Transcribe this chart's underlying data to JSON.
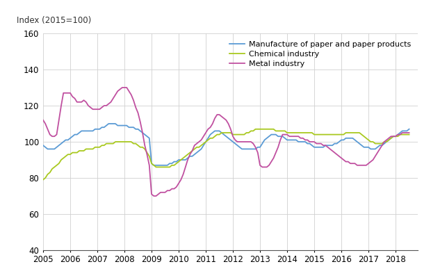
{
  "ylabel": "Index (2015=100)",
  "ylim": [
    40,
    160
  ],
  "yticks": [
    40,
    60,
    80,
    100,
    120,
    140,
    160
  ],
  "xlim_start": 2005.0,
  "xlim_end": 2018.83,
  "legend_labels": [
    "Manufacture of paper and paper products",
    "Chemical industry",
    "Metal industry"
  ],
  "line_colors": [
    "#5b9bd5",
    "#a9c920",
    "#c050a0"
  ],
  "line_width": 1.3,
  "background_color": "#ffffff",
  "grid_color": "#d0d0d0",
  "paper_x": [
    2005.0,
    2005.083,
    2005.167,
    2005.25,
    2005.333,
    2005.417,
    2005.5,
    2005.583,
    2005.667,
    2005.75,
    2005.833,
    2005.917,
    2006.0,
    2006.083,
    2006.167,
    2006.25,
    2006.333,
    2006.417,
    2006.5,
    2006.583,
    2006.667,
    2006.75,
    2006.833,
    2006.917,
    2007.0,
    2007.083,
    2007.167,
    2007.25,
    2007.333,
    2007.417,
    2007.5,
    2007.583,
    2007.667,
    2007.75,
    2007.833,
    2007.917,
    2008.0,
    2008.083,
    2008.167,
    2008.25,
    2008.333,
    2008.417,
    2008.5,
    2008.583,
    2008.667,
    2008.75,
    2008.833,
    2008.917,
    2009.0,
    2009.083,
    2009.167,
    2009.25,
    2009.333,
    2009.417,
    2009.5,
    2009.583,
    2009.667,
    2009.75,
    2009.833,
    2009.917,
    2010.0,
    2010.083,
    2010.167,
    2010.25,
    2010.333,
    2010.417,
    2010.5,
    2010.583,
    2010.667,
    2010.75,
    2010.833,
    2010.917,
    2011.0,
    2011.083,
    2011.167,
    2011.25,
    2011.333,
    2011.417,
    2011.5,
    2011.583,
    2011.667,
    2011.75,
    2011.833,
    2011.917,
    2012.0,
    2012.083,
    2012.167,
    2012.25,
    2012.333,
    2012.417,
    2012.5,
    2012.583,
    2012.667,
    2012.75,
    2012.833,
    2012.917,
    2013.0,
    2013.083,
    2013.167,
    2013.25,
    2013.333,
    2013.417,
    2013.5,
    2013.583,
    2013.667,
    2013.75,
    2013.833,
    2013.917,
    2014.0,
    2014.083,
    2014.167,
    2014.25,
    2014.333,
    2014.417,
    2014.5,
    2014.583,
    2014.667,
    2014.75,
    2014.833,
    2014.917,
    2015.0,
    2015.083,
    2015.167,
    2015.25,
    2015.333,
    2015.417,
    2015.5,
    2015.583,
    2015.667,
    2015.75,
    2015.833,
    2015.917,
    2016.0,
    2016.083,
    2016.167,
    2016.25,
    2016.333,
    2016.417,
    2016.5,
    2016.583,
    2016.667,
    2016.75,
    2016.833,
    2016.917,
    2017.0,
    2017.083,
    2017.167,
    2017.25,
    2017.333,
    2017.417,
    2017.5,
    2017.583,
    2017.667,
    2017.75,
    2017.833,
    2017.917,
    2018.0,
    2018.083,
    2018.167,
    2018.25,
    2018.333,
    2018.417,
    2018.5
  ],
  "paper_y": [
    98,
    97,
    96,
    96,
    96,
    96,
    97,
    98,
    99,
    100,
    101,
    101,
    102,
    103,
    104,
    104,
    105,
    106,
    106,
    106,
    106,
    106,
    106,
    107,
    107,
    107,
    108,
    108,
    109,
    110,
    110,
    110,
    110,
    109,
    109,
    109,
    109,
    109,
    108,
    108,
    108,
    107,
    107,
    106,
    105,
    104,
    103,
    102,
    88,
    87,
    87,
    87,
    87,
    87,
    87,
    87,
    88,
    88,
    89,
    89,
    90,
    90,
    90,
    90,
    91,
    92,
    92,
    93,
    94,
    95,
    96,
    98,
    100,
    102,
    104,
    105,
    106,
    106,
    106,
    105,
    104,
    103,
    102,
    101,
    100,
    99,
    98,
    97,
    96,
    96,
    96,
    96,
    96,
    96,
    96,
    97,
    97,
    99,
    101,
    102,
    103,
    104,
    104,
    104,
    103,
    103,
    103,
    102,
    101,
    101,
    101,
    101,
    101,
    100,
    100,
    100,
    100,
    99,
    99,
    98,
    97,
    97,
    97,
    97,
    97,
    98,
    98,
    98,
    98,
    99,
    99,
    100,
    101,
    101,
    102,
    102,
    102,
    102,
    101,
    100,
    99,
    98,
    97,
    97,
    97,
    96,
    96,
    96,
    97,
    98,
    98,
    99,
    100,
    101,
    102,
    103,
    103,
    104,
    105,
    106,
    106,
    106,
    107
  ],
  "chemical_x": [
    2005.0,
    2005.083,
    2005.167,
    2005.25,
    2005.333,
    2005.417,
    2005.5,
    2005.583,
    2005.667,
    2005.75,
    2005.833,
    2005.917,
    2006.0,
    2006.083,
    2006.167,
    2006.25,
    2006.333,
    2006.417,
    2006.5,
    2006.583,
    2006.667,
    2006.75,
    2006.833,
    2006.917,
    2007.0,
    2007.083,
    2007.167,
    2007.25,
    2007.333,
    2007.417,
    2007.5,
    2007.583,
    2007.667,
    2007.75,
    2007.833,
    2007.917,
    2008.0,
    2008.083,
    2008.167,
    2008.25,
    2008.333,
    2008.417,
    2008.5,
    2008.583,
    2008.667,
    2008.75,
    2008.833,
    2008.917,
    2009.0,
    2009.083,
    2009.167,
    2009.25,
    2009.333,
    2009.417,
    2009.5,
    2009.583,
    2009.667,
    2009.75,
    2009.833,
    2009.917,
    2010.0,
    2010.083,
    2010.167,
    2010.25,
    2010.333,
    2010.417,
    2010.5,
    2010.583,
    2010.667,
    2010.75,
    2010.833,
    2010.917,
    2011.0,
    2011.083,
    2011.167,
    2011.25,
    2011.333,
    2011.417,
    2011.5,
    2011.583,
    2011.667,
    2011.75,
    2011.833,
    2011.917,
    2012.0,
    2012.083,
    2012.167,
    2012.25,
    2012.333,
    2012.417,
    2012.5,
    2012.583,
    2012.667,
    2012.75,
    2012.833,
    2012.917,
    2013.0,
    2013.083,
    2013.167,
    2013.25,
    2013.333,
    2013.417,
    2013.5,
    2013.583,
    2013.667,
    2013.75,
    2013.833,
    2013.917,
    2014.0,
    2014.083,
    2014.167,
    2014.25,
    2014.333,
    2014.417,
    2014.5,
    2014.583,
    2014.667,
    2014.75,
    2014.833,
    2014.917,
    2015.0,
    2015.083,
    2015.167,
    2015.25,
    2015.333,
    2015.417,
    2015.5,
    2015.583,
    2015.667,
    2015.75,
    2015.833,
    2015.917,
    2016.0,
    2016.083,
    2016.167,
    2016.25,
    2016.333,
    2016.417,
    2016.5,
    2016.583,
    2016.667,
    2016.75,
    2016.833,
    2016.917,
    2017.0,
    2017.083,
    2017.167,
    2017.25,
    2017.333,
    2017.417,
    2017.5,
    2017.583,
    2017.667,
    2017.75,
    2017.833,
    2017.917,
    2018.0,
    2018.083,
    2018.167,
    2018.25,
    2018.333,
    2018.417,
    2018.5
  ],
  "chemical_y": [
    79,
    80,
    82,
    83,
    85,
    86,
    87,
    88,
    90,
    91,
    92,
    93,
    93,
    94,
    94,
    94,
    95,
    95,
    95,
    96,
    96,
    96,
    96,
    97,
    97,
    97,
    98,
    98,
    99,
    99,
    99,
    99,
    100,
    100,
    100,
    100,
    100,
    100,
    100,
    100,
    99,
    99,
    98,
    97,
    97,
    96,
    94,
    92,
    88,
    87,
    86,
    86,
    86,
    86,
    86,
    86,
    86,
    87,
    87,
    88,
    89,
    90,
    91,
    92,
    93,
    94,
    95,
    96,
    97,
    97,
    98,
    99,
    100,
    101,
    102,
    102,
    103,
    104,
    104,
    105,
    105,
    105,
    105,
    105,
    104,
    104,
    104,
    104,
    104,
    104,
    105,
    105,
    106,
    106,
    107,
    107,
    107,
    107,
    107,
    107,
    107,
    107,
    107,
    106,
    106,
    106,
    106,
    106,
    105,
    105,
    105,
    105,
    105,
    105,
    105,
    105,
    105,
    105,
    105,
    105,
    104,
    104,
    104,
    104,
    104,
    104,
    104,
    104,
    104,
    104,
    104,
    104,
    104,
    104,
    105,
    105,
    105,
    105,
    105,
    105,
    105,
    104,
    103,
    102,
    101,
    100,
    100,
    99,
    99,
    99,
    99,
    100,
    100,
    101,
    102,
    103,
    103,
    103,
    104,
    104,
    104,
    104,
    104
  ],
  "metal_x": [
    2005.0,
    2005.083,
    2005.167,
    2005.25,
    2005.333,
    2005.417,
    2005.5,
    2005.583,
    2005.667,
    2005.75,
    2005.833,
    2005.917,
    2006.0,
    2006.083,
    2006.167,
    2006.25,
    2006.333,
    2006.417,
    2006.5,
    2006.583,
    2006.667,
    2006.75,
    2006.833,
    2006.917,
    2007.0,
    2007.083,
    2007.167,
    2007.25,
    2007.333,
    2007.417,
    2007.5,
    2007.583,
    2007.667,
    2007.75,
    2007.833,
    2007.917,
    2008.0,
    2008.083,
    2008.167,
    2008.25,
    2008.333,
    2008.417,
    2008.5,
    2008.583,
    2008.667,
    2008.75,
    2008.833,
    2008.917,
    2009.0,
    2009.083,
    2009.167,
    2009.25,
    2009.333,
    2009.417,
    2009.5,
    2009.583,
    2009.667,
    2009.75,
    2009.833,
    2009.917,
    2010.0,
    2010.083,
    2010.167,
    2010.25,
    2010.333,
    2010.417,
    2010.5,
    2010.583,
    2010.667,
    2010.75,
    2010.833,
    2010.917,
    2011.0,
    2011.083,
    2011.167,
    2011.25,
    2011.333,
    2011.417,
    2011.5,
    2011.583,
    2011.667,
    2011.75,
    2011.833,
    2011.917,
    2012.0,
    2012.083,
    2012.167,
    2012.25,
    2012.333,
    2012.417,
    2012.5,
    2012.583,
    2012.667,
    2012.75,
    2012.833,
    2012.917,
    2013.0,
    2013.083,
    2013.167,
    2013.25,
    2013.333,
    2013.417,
    2013.5,
    2013.583,
    2013.667,
    2013.75,
    2013.833,
    2013.917,
    2014.0,
    2014.083,
    2014.167,
    2014.25,
    2014.333,
    2014.417,
    2014.5,
    2014.583,
    2014.667,
    2014.75,
    2014.833,
    2014.917,
    2015.0,
    2015.083,
    2015.167,
    2015.25,
    2015.333,
    2015.417,
    2015.5,
    2015.583,
    2015.667,
    2015.75,
    2015.833,
    2015.917,
    2016.0,
    2016.083,
    2016.167,
    2016.25,
    2016.333,
    2016.417,
    2016.5,
    2016.583,
    2016.667,
    2016.75,
    2016.833,
    2016.917,
    2017.0,
    2017.083,
    2017.167,
    2017.25,
    2017.333,
    2017.417,
    2017.5,
    2017.583,
    2017.667,
    2017.75,
    2017.833,
    2017.917,
    2018.0,
    2018.083,
    2018.167,
    2018.25,
    2018.333,
    2018.417,
    2018.5
  ],
  "metal_y": [
    112,
    110,
    107,
    104,
    103,
    103,
    104,
    112,
    120,
    127,
    127,
    127,
    127,
    125,
    124,
    122,
    122,
    122,
    123,
    122,
    120,
    119,
    118,
    118,
    118,
    118,
    119,
    120,
    120,
    121,
    122,
    124,
    126,
    128,
    129,
    130,
    130,
    130,
    128,
    126,
    123,
    119,
    116,
    111,
    105,
    98,
    93,
    87,
    71,
    70,
    70,
    71,
    72,
    72,
    72,
    73,
    73,
    74,
    74,
    75,
    77,
    79,
    82,
    86,
    90,
    93,
    95,
    98,
    99,
    100,
    101,
    103,
    105,
    107,
    108,
    110,
    113,
    115,
    115,
    114,
    113,
    112,
    110,
    107,
    103,
    101,
    100,
    100,
    100,
    100,
    100,
    100,
    100,
    99,
    97,
    94,
    87,
    86,
    86,
    86,
    87,
    89,
    91,
    94,
    97,
    101,
    104,
    104,
    104,
    103,
    103,
    103,
    103,
    103,
    102,
    102,
    101,
    101,
    100,
    100,
    100,
    99,
    99,
    99,
    98,
    98,
    97,
    96,
    95,
    94,
    93,
    92,
    91,
    90,
    89,
    89,
    88,
    88,
    88,
    87,
    87,
    87,
    87,
    87,
    88,
    89,
    90,
    92,
    94,
    96,
    98,
    100,
    101,
    102,
    103,
    103,
    103,
    104,
    104,
    105,
    105,
    105,
    105
  ]
}
